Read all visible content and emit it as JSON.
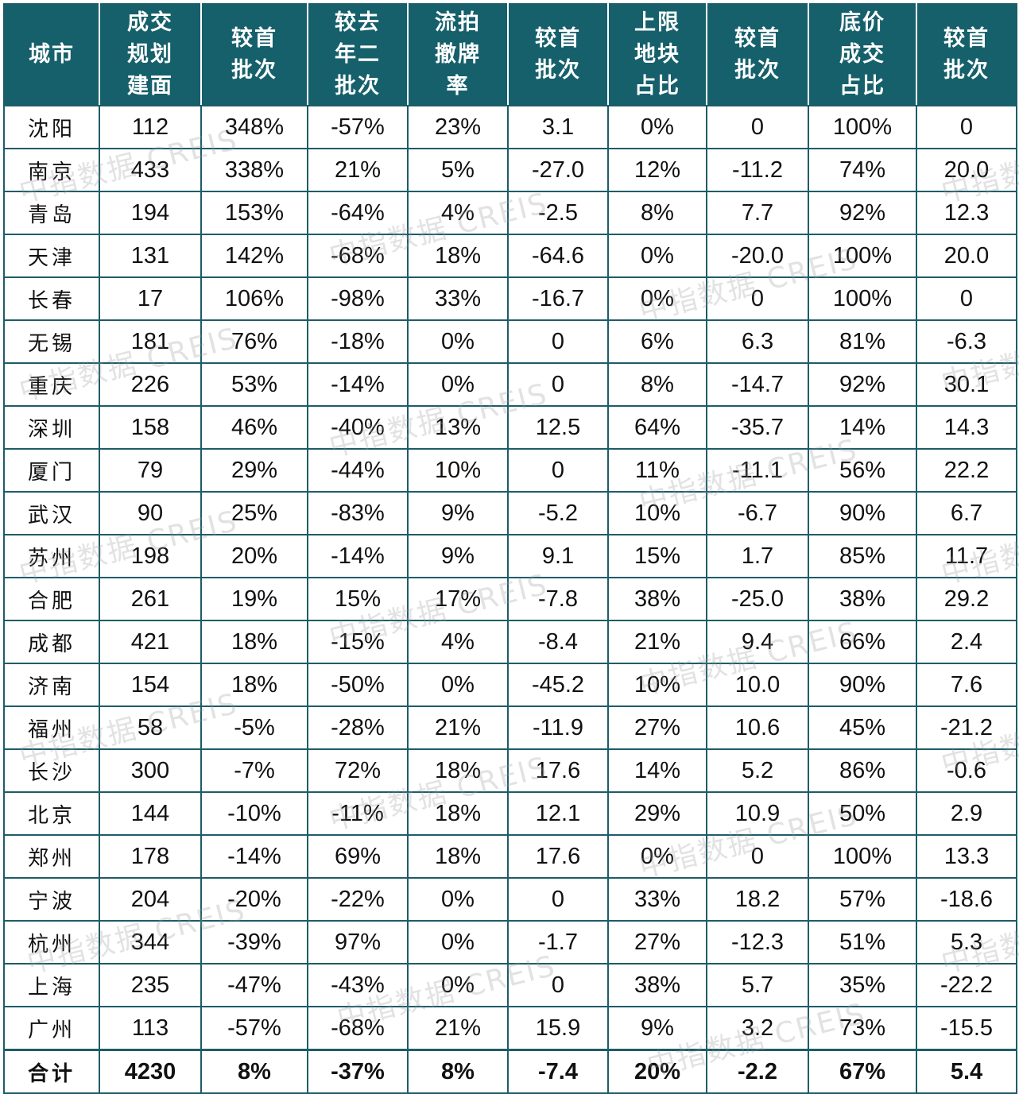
{
  "colors": {
    "header_bg": "#16606b",
    "positive": "#e0262b",
    "negative": "#1a9a3a",
    "neutral": "#111111"
  },
  "headers": [
    [
      "城市"
    ],
    [
      "成交",
      "规划",
      "建面"
    ],
    [
      "较首",
      "批次"
    ],
    [
      "较去",
      "年二",
      "批次"
    ],
    [
      "流拍",
      "撤牌",
      "率"
    ],
    [
      "较首",
      "批次"
    ],
    [
      "上限",
      "地块",
      "占比"
    ],
    [
      "较首",
      "批次"
    ],
    [
      "底价",
      "成交",
      "占比"
    ],
    [
      "较首",
      "批次"
    ]
  ],
  "rows": [
    {
      "city": "沈阳",
      "area": "112",
      "vs_first": "348%",
      "vs_last_year": "-57%",
      "fail_rate": "23%",
      "fail_vs_first": "3.1",
      "cap_ratio": "0%",
      "cap_vs_first": "0",
      "floor_ratio": "100%",
      "floor_vs_first": "0"
    },
    {
      "city": "南京",
      "area": "433",
      "vs_first": "338%",
      "vs_last_year": "21%",
      "fail_rate": "5%",
      "fail_vs_first": "-27.0",
      "cap_ratio": "12%",
      "cap_vs_first": "-11.2",
      "floor_ratio": "74%",
      "floor_vs_first": "20.0"
    },
    {
      "city": "青岛",
      "area": "194",
      "vs_first": "153%",
      "vs_last_year": "-64%",
      "fail_rate": "4%",
      "fail_vs_first": "-2.5",
      "cap_ratio": "8%",
      "cap_vs_first": "7.7",
      "floor_ratio": "92%",
      "floor_vs_first": "12.3"
    },
    {
      "city": "天津",
      "area": "131",
      "vs_first": "142%",
      "vs_last_year": "-68%",
      "fail_rate": "18%",
      "fail_vs_first": "-64.6",
      "cap_ratio": "0%",
      "cap_vs_first": "-20.0",
      "floor_ratio": "100%",
      "floor_vs_first": "20.0"
    },
    {
      "city": "长春",
      "area": "17",
      "vs_first": "106%",
      "vs_last_year": "-98%",
      "fail_rate": "33%",
      "fail_vs_first": "-16.7",
      "cap_ratio": "0%",
      "cap_vs_first": "0",
      "floor_ratio": "100%",
      "floor_vs_first": "0"
    },
    {
      "city": "无锡",
      "area": "181",
      "vs_first": "76%",
      "vs_last_year": "-18%",
      "fail_rate": "0%",
      "fail_vs_first": "0",
      "cap_ratio": "6%",
      "cap_vs_first": "6.3",
      "floor_ratio": "81%",
      "floor_vs_first": "-6.3"
    },
    {
      "city": "重庆",
      "area": "226",
      "vs_first": "53%",
      "vs_last_year": "-14%",
      "fail_rate": "0%",
      "fail_vs_first": "0",
      "cap_ratio": "8%",
      "cap_vs_first": "-14.7",
      "floor_ratio": "92%",
      "floor_vs_first": "30.1"
    },
    {
      "city": "深圳",
      "area": "158",
      "vs_first": "46%",
      "vs_last_year": "-40%",
      "fail_rate": "13%",
      "fail_vs_first": "12.5",
      "cap_ratio": "64%",
      "cap_vs_first": "-35.7",
      "floor_ratio": "14%",
      "floor_vs_first": "14.3"
    },
    {
      "city": "厦门",
      "area": "79",
      "vs_first": "29%",
      "vs_last_year": "-44%",
      "fail_rate": "10%",
      "fail_vs_first": "0",
      "cap_ratio": "11%",
      "cap_vs_first": "-11.1",
      "floor_ratio": "56%",
      "floor_vs_first": "22.2"
    },
    {
      "city": "武汉",
      "area": "90",
      "vs_first": "25%",
      "vs_last_year": "-83%",
      "fail_rate": "9%",
      "fail_vs_first": "-5.2",
      "cap_ratio": "10%",
      "cap_vs_first": "-6.7",
      "floor_ratio": "90%",
      "floor_vs_first": "6.7"
    },
    {
      "city": "苏州",
      "area": "198",
      "vs_first": "20%",
      "vs_last_year": "-14%",
      "fail_rate": "9%",
      "fail_vs_first": "9.1",
      "cap_ratio": "15%",
      "cap_vs_first": "1.7",
      "floor_ratio": "85%",
      "floor_vs_first": "11.7"
    },
    {
      "city": "合肥",
      "area": "261",
      "vs_first": "19%",
      "vs_last_year": "15%",
      "fail_rate": "17%",
      "fail_vs_first": "-7.8",
      "cap_ratio": "38%",
      "cap_vs_first": "-25.0",
      "floor_ratio": "38%",
      "floor_vs_first": "29.2"
    },
    {
      "city": "成都",
      "area": "421",
      "vs_first": "18%",
      "vs_last_year": "-15%",
      "fail_rate": "4%",
      "fail_vs_first": "-8.4",
      "cap_ratio": "21%",
      "cap_vs_first": "9.4",
      "floor_ratio": "66%",
      "floor_vs_first": "2.4"
    },
    {
      "city": "济南",
      "area": "154",
      "vs_first": "18%",
      "vs_last_year": "-50%",
      "fail_rate": "0%",
      "fail_vs_first": "-45.2",
      "cap_ratio": "10%",
      "cap_vs_first": "10.0",
      "floor_ratio": "90%",
      "floor_vs_first": "7.6"
    },
    {
      "city": "福州",
      "area": "58",
      "vs_first": "-5%",
      "vs_last_year": "-28%",
      "fail_rate": "21%",
      "fail_vs_first": "-11.9",
      "cap_ratio": "27%",
      "cap_vs_first": "10.6",
      "floor_ratio": "45%",
      "floor_vs_first": "-21.2"
    },
    {
      "city": "长沙",
      "area": "300",
      "vs_first": "-7%",
      "vs_last_year": "72%",
      "fail_rate": "18%",
      "fail_vs_first": "17.6",
      "cap_ratio": "14%",
      "cap_vs_first": "5.2",
      "floor_ratio": "86%",
      "floor_vs_first": "-0.6"
    },
    {
      "city": "北京",
      "area": "144",
      "vs_first": "-10%",
      "vs_last_year": "-11%",
      "fail_rate": "18%",
      "fail_vs_first": "12.1",
      "cap_ratio": "29%",
      "cap_vs_first": "10.9",
      "floor_ratio": "50%",
      "floor_vs_first": "2.9"
    },
    {
      "city": "郑州",
      "area": "178",
      "vs_first": "-14%",
      "vs_last_year": "69%",
      "fail_rate": "18%",
      "fail_vs_first": "17.6",
      "cap_ratio": "0%",
      "cap_vs_first": "0",
      "floor_ratio": "100%",
      "floor_vs_first": "13.3"
    },
    {
      "city": "宁波",
      "area": "204",
      "vs_first": "-20%",
      "vs_last_year": "-22%",
      "fail_rate": "0%",
      "fail_vs_first": "0",
      "cap_ratio": "33%",
      "cap_vs_first": "18.2",
      "floor_ratio": "57%",
      "floor_vs_first": "-18.6"
    },
    {
      "city": "杭州",
      "area": "344",
      "vs_first": "-39%",
      "vs_last_year": "97%",
      "fail_rate": "0%",
      "fail_vs_first": "-1.7",
      "cap_ratio": "27%",
      "cap_vs_first": "-12.3",
      "floor_ratio": "51%",
      "floor_vs_first": "5.3"
    },
    {
      "city": "上海",
      "area": "235",
      "vs_first": "-47%",
      "vs_last_year": "-43%",
      "fail_rate": "0%",
      "fail_vs_first": "0",
      "cap_ratio": "38%",
      "cap_vs_first": "5.7",
      "floor_ratio": "35%",
      "floor_vs_first": "-22.2"
    },
    {
      "city": "广州",
      "area": "113",
      "vs_first": "-57%",
      "vs_last_year": "-68%",
      "fail_rate": "21%",
      "fail_vs_first": "15.9",
      "cap_ratio": "9%",
      "cap_vs_first": "3.2",
      "floor_ratio": "73%",
      "floor_vs_first": "-15.5"
    }
  ],
  "total": {
    "city": "合计",
    "area": "4230",
    "vs_first": "8%",
    "vs_last_year": "-37%",
    "fail_rate": "8%",
    "fail_vs_first": "-7.4",
    "cap_ratio": "20%",
    "cap_vs_first": "-2.2",
    "floor_ratio": "67%",
    "floor_vs_first": "5.4"
  },
  "watermark": "中指数据 CREIS"
}
